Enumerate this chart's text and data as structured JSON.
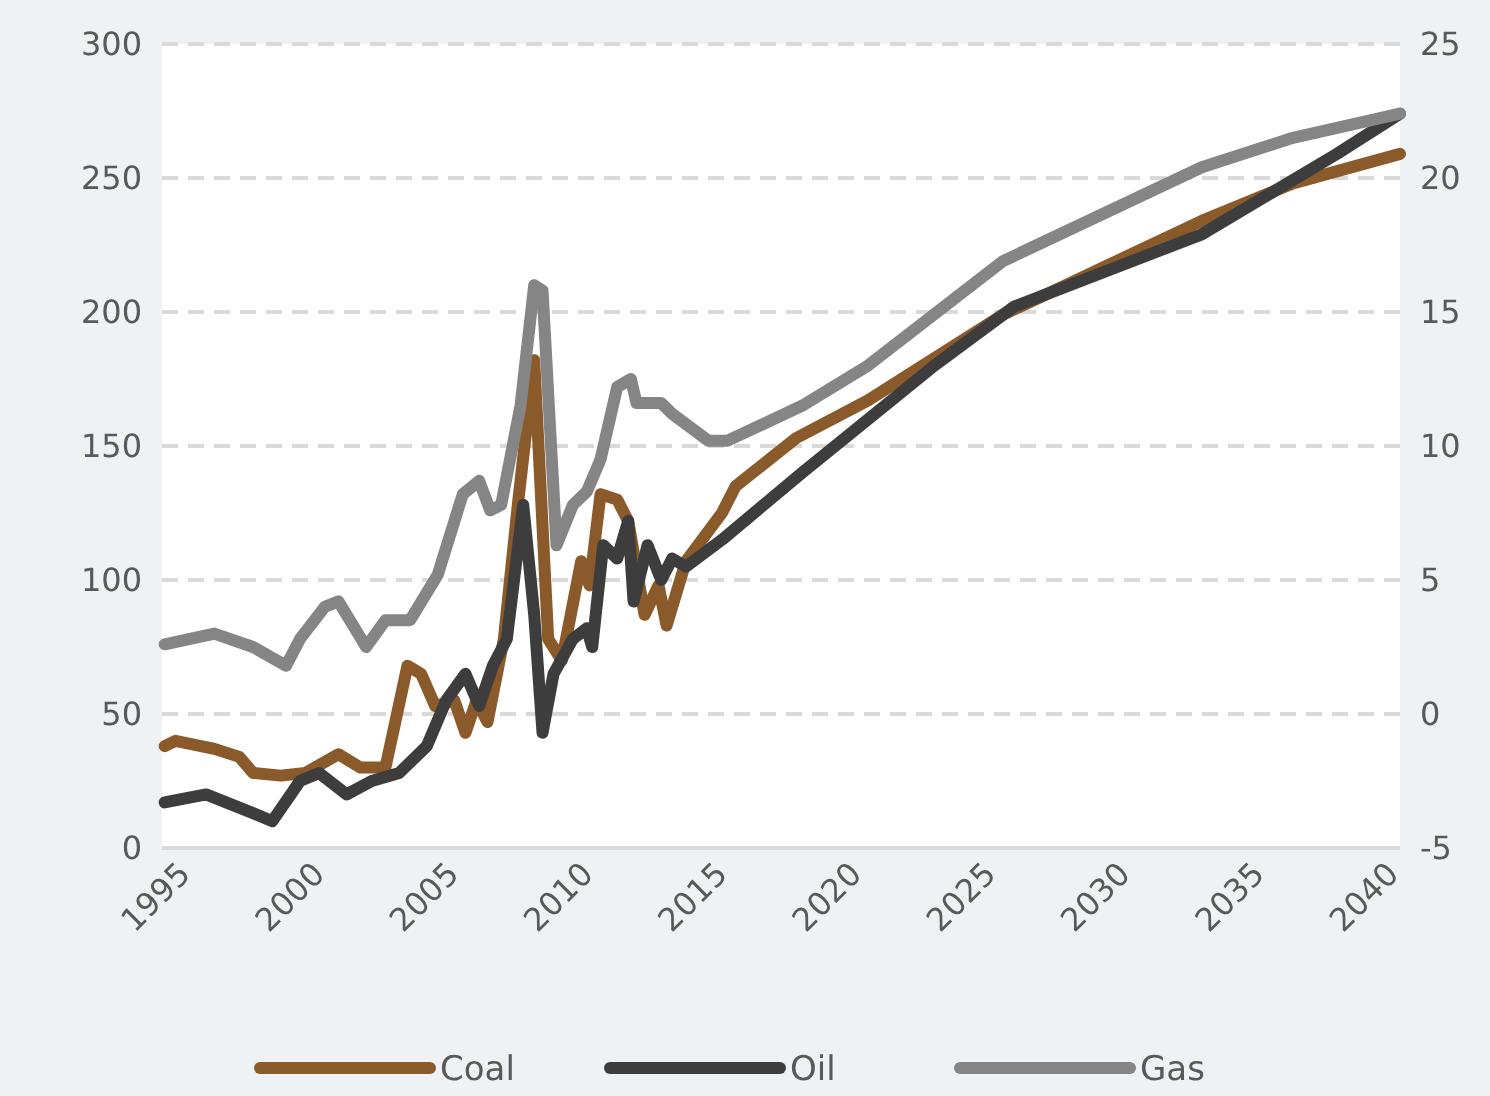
{
  "chart_data": {
    "type": "line",
    "xlim": [
      1994.4,
      2040.5
    ],
    "xticks": [
      1995,
      2000,
      2005,
      2010,
      2015,
      2020,
      2025,
      2030,
      2035,
      2040
    ],
    "ylim": [
      0,
      300
    ],
    "yticks": [
      0,
      50,
      100,
      150,
      200,
      250,
      300
    ],
    "y2lim": [
      -5,
      25
    ],
    "y2ticks": [
      -5,
      0,
      5,
      10,
      15,
      20,
      25
    ],
    "grid": "y",
    "legend": "bottom",
    "line_style": "solid",
    "marker": "none",
    "series": [
      {
        "name": "Coal",
        "color": "#8b5a2b",
        "x": [
          1994.5,
          1994.9,
          1996.35,
          1997.28,
          1997.79,
          1998.82,
          1999.74,
          2000.97,
          2001.79,
          2002.72,
          2003.54,
          2004.05,
          2004.57,
          2005.29,
          2005.7,
          2006.11,
          2006.52,
          2007.13,
          2007.65,
          2008.26,
          2008.78,
          2009.29,
          2010.01,
          2010.32,
          2010.73,
          2011.35,
          2011.76,
          2012.37,
          2012.89,
          2013.19,
          2013.91,
          2015.25,
          2015.76,
          2018.02,
          2020.69,
          2025.72,
          2033.12,
          2036.51,
          2040.5
        ],
        "values": [
          38,
          40,
          37,
          34,
          28,
          27,
          28,
          35,
          30,
          30,
          68,
          65,
          53,
          55,
          43,
          55,
          47,
          78,
          128,
          182,
          78,
          70,
          107,
          98,
          132,
          130,
          122,
          87,
          98,
          83,
          107,
          125,
          135,
          153,
          167,
          199,
          234,
          248,
          259
        ]
      },
      {
        "name": "Oil",
        "color": "#3d3d3d",
        "x": [
          1994.5,
          1996.04,
          1997.79,
          1998.51,
          1999.54,
          2000.25,
          2001.28,
          2002.21,
          2003.23,
          2004.26,
          2004.98,
          2005.7,
          2006.21,
          2006.72,
          2007.24,
          2007.85,
          2008.26,
          2008.57,
          2008.98,
          2009.7,
          2010.22,
          2010.42,
          2010.83,
          2011.35,
          2011.76,
          2011.96,
          2012.48,
          2012.99,
          2013.4,
          2013.91,
          2015.25,
          2018.23,
          2023.16,
          2026.13,
          2033.12,
          2038.15,
          2040.5
        ],
        "values": [
          17,
          20,
          13,
          10,
          25,
          28,
          20,
          25,
          28,
          38,
          55,
          65,
          53,
          68,
          78,
          128,
          87,
          43,
          65,
          78,
          82,
          75,
          113,
          108,
          122,
          92,
          113,
          100,
          108,
          105,
          115,
          140,
          180,
          202,
          229,
          259,
          274
        ]
      },
      {
        "name": "Gas",
        "color": "#858585",
        "axis": "y2",
        "x": [
          1994.5,
          1996.35,
          1997.79,
          1999.02,
          1999.54,
          2000.46,
          2000.97,
          2002,
          2002.72,
          2003.64,
          2004.67,
          2005.6,
          2006.21,
          2006.62,
          2007.03,
          2007.75,
          2008.26,
          2008.57,
          2009.09,
          2009.7,
          2010.22,
          2010.73,
          2011.35,
          2011.86,
          2012.07,
          2012.99,
          2013.4,
          2014.74,
          2015.46,
          2018.23,
          2020.69,
          2025.72,
          2033.12,
          2036.51,
          2040.5
        ],
        "values": [
          2.6,
          3,
          2.5,
          1.8,
          2.8,
          4,
          4.2,
          2.5,
          3.5,
          3.5,
          5.2,
          8.2,
          8.7,
          7.6,
          7.8,
          11.5,
          16,
          15.8,
          6.3,
          7.8,
          8.3,
          9.5,
          12.2,
          12.5,
          11.6,
          11.6,
          11.2,
          10.2,
          10.2,
          11.5,
          13,
          16.9,
          20.4,
          21.5,
          22.4
        ]
      }
    ]
  }
}
